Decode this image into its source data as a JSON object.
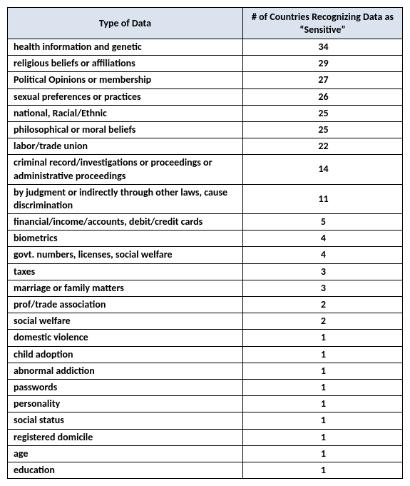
{
  "table": {
    "type": "table",
    "header_bg": "#dbe3ef",
    "border_color": "#000000",
    "font_family": "Calibri",
    "header_fontsize": 14,
    "cell_fontsize": 14,
    "cell_fontweight": "bold",
    "columns": [
      {
        "label": "Type of Data",
        "align": "center",
        "width_pct": 60
      },
      {
        "label": "# of Countries Recognizing Data as “Sensitive”",
        "align": "center",
        "width_pct": 40
      }
    ],
    "rows": [
      {
        "label": "health information and genetic",
        "value": 34
      },
      {
        "label": "religious beliefs or affiliations",
        "value": 29
      },
      {
        "label": "Political Opinions or membership",
        "value": 27
      },
      {
        "label": "sexual preferences or practices",
        "value": 26
      },
      {
        "label": "national, Racial/Ethnic",
        "value": 25
      },
      {
        "label": "philosophical or moral beliefs",
        "value": 25
      },
      {
        "label": "labor/trade union",
        "value": 22
      },
      {
        "label": "criminal record/investigations or proceedings or administrative proceedings",
        "value": 14
      },
      {
        "label": "by judgment or indirectly through other laws, cause discrimination",
        "value": 11
      },
      {
        "label": "financial/income/accounts, debit/credit cards",
        "value": 5
      },
      {
        "label": "biometrics",
        "value": 4
      },
      {
        "label": "govt. numbers, licenses, social welfare",
        "value": 4
      },
      {
        "label": "taxes",
        "value": 3
      },
      {
        "label": "marriage or family matters",
        "value": 3
      },
      {
        "label": "prof/trade association",
        "value": 2
      },
      {
        "label": "social welfare",
        "value": 2
      },
      {
        "label": "domestic violence",
        "value": 1
      },
      {
        "label": "child adoption",
        "value": 1
      },
      {
        "label": "abnormal addiction",
        "value": 1
      },
      {
        "label": "passwords",
        "value": 1
      },
      {
        "label": "personality",
        "value": 1
      },
      {
        "label": "social status",
        "value": 1
      },
      {
        "label": "registered domicile",
        "value": 1
      },
      {
        "label": "age",
        "value": 1
      },
      {
        "label": "education",
        "value": 1
      }
    ]
  }
}
